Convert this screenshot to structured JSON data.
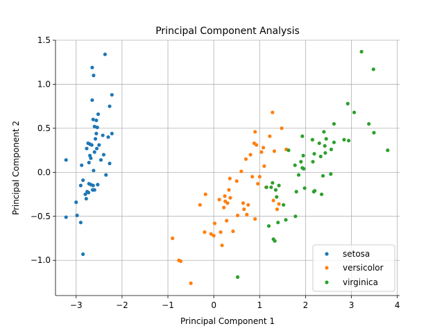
{
  "chart_data": {
    "type": "scatter",
    "title": "Principal Component Analysis",
    "xlabel": "Principal Component 1",
    "ylabel": "Principal Component 2",
    "xlim": [
      -3.45,
      4.05
    ],
    "ylim": [
      -1.4,
      1.5
    ],
    "xticks": [
      -3,
      -2,
      -1,
      0,
      1,
      2,
      3,
      4
    ],
    "xtick_labels": [
      "−3",
      "−2",
      "−1",
      "0",
      "1",
      "2",
      "3",
      "4"
    ],
    "yticks": [
      -1.0,
      -0.5,
      0.0,
      0.5,
      1.0,
      1.5
    ],
    "ytick_labels": [
      "−1.0",
      "−0.5",
      "0.0",
      "0.5",
      "1.0",
      "1.5"
    ],
    "grid": true,
    "legend_position": "lower-right",
    "series": [
      {
        "name": "setosa",
        "color": "#1f77b4",
        "points": [
          [
            -3.22,
            0.14
          ],
          [
            -3.22,
            -0.51
          ],
          [
            -3.0,
            -0.34
          ],
          [
            -2.98,
            -0.49
          ],
          [
            -2.9,
            -0.57
          ],
          [
            -2.88,
            0.08
          ],
          [
            -2.9,
            -0.15
          ],
          [
            -2.85,
            -0.09
          ],
          [
            -2.85,
            -0.93
          ],
          [
            -2.8,
            -0.25
          ],
          [
            -2.78,
            -0.3
          ],
          [
            -2.76,
            -0.22
          ],
          [
            -2.73,
            -0.23
          ],
          [
            -2.72,
            -0.13
          ],
          [
            -2.77,
            0.27
          ],
          [
            -2.74,
            0.33
          ],
          [
            -2.7,
            0.32
          ],
          [
            -2.72,
            0.11
          ],
          [
            -2.68,
            0.16
          ],
          [
            -2.66,
            0.31
          ],
          [
            -2.64,
            -0.2
          ],
          [
            -2.63,
            -0.15
          ],
          [
            -2.65,
            0.82
          ],
          [
            -2.65,
            1.19
          ],
          [
            -2.62,
            1.1
          ],
          [
            -2.63,
            0.6
          ],
          [
            -2.6,
            0.52
          ],
          [
            -2.6,
            0.23
          ],
          [
            -2.62,
            0.02
          ],
          [
            -2.58,
            0.38
          ],
          [
            -2.56,
            0.59
          ],
          [
            -2.56,
            0.44
          ],
          [
            -2.54,
            0.51
          ],
          [
            -2.52,
            0.66
          ],
          [
            -2.5,
            0.31
          ],
          [
            -2.53,
            -0.14
          ],
          [
            -2.46,
            0.14
          ],
          [
            -2.42,
            0.42
          ],
          [
            -2.4,
            0.2
          ],
          [
            -2.37,
            1.34
          ],
          [
            -2.35,
            -0.03
          ],
          [
            -2.3,
            0.4
          ],
          [
            -2.27,
            0.75
          ],
          [
            -2.27,
            0.1
          ],
          [
            -2.22,
            0.88
          ],
          [
            -2.22,
            0.44
          ],
          [
            -2.68,
            -0.14
          ],
          [
            -2.6,
            -0.2
          ],
          [
            -2.55,
            0.27
          ],
          [
            -2.7,
            0.19
          ]
        ]
      },
      {
        "name": "versicolor",
        "color": "#ff7f0e",
        "points": [
          [
            -0.9,
            -0.75
          ],
          [
            -0.76,
            -1.0
          ],
          [
            -0.72,
            -1.01
          ],
          [
            -0.5,
            -1.26
          ],
          [
            -0.3,
            -0.37
          ],
          [
            -0.2,
            -0.68
          ],
          [
            -0.18,
            -0.25
          ],
          [
            -0.06,
            -0.7
          ],
          [
            0.0,
            -0.72
          ],
          [
            0.02,
            -0.58
          ],
          [
            0.12,
            -0.31
          ],
          [
            0.15,
            -0.68
          ],
          [
            0.18,
            -0.83
          ],
          [
            0.22,
            -0.4
          ],
          [
            0.24,
            -0.27
          ],
          [
            0.25,
            -0.33
          ],
          [
            0.28,
            -0.55
          ],
          [
            0.3,
            -0.35
          ],
          [
            0.33,
            -0.2
          ],
          [
            0.35,
            -0.07
          ],
          [
            0.36,
            -0.29
          ],
          [
            0.42,
            -0.67
          ],
          [
            0.5,
            -0.1
          ],
          [
            0.52,
            -0.49
          ],
          [
            0.6,
            0.01
          ],
          [
            0.64,
            -0.35
          ],
          [
            0.66,
            -0.42
          ],
          [
            0.7,
            0.15
          ],
          [
            0.75,
            -0.37
          ],
          [
            0.8,
            0.2
          ],
          [
            0.84,
            -0.05
          ],
          [
            0.88,
            0.33
          ],
          [
            0.9,
            0.46
          ],
          [
            0.9,
            -0.53
          ],
          [
            0.93,
            0.31
          ],
          [
            0.96,
            -0.13
          ],
          [
            1.0,
            -0.05
          ],
          [
            1.04,
            0.23
          ],
          [
            1.08,
            0.28
          ],
          [
            1.1,
            0.07
          ],
          [
            1.14,
            -0.17
          ],
          [
            1.22,
            0.41
          ],
          [
            1.28,
            0.68
          ],
          [
            1.3,
            -0.32
          ],
          [
            1.32,
            0.24
          ],
          [
            1.38,
            -0.42
          ],
          [
            1.42,
            -0.36
          ],
          [
            1.48,
            0.5
          ],
          [
            1.58,
            0.26
          ],
          [
            0.72,
            -0.48
          ]
        ]
      },
      {
        "name": "virginica",
        "color": "#2ca02c",
        "points": [
          [
            0.52,
            -1.19
          ],
          [
            1.15,
            -0.17
          ],
          [
            1.2,
            -0.61
          ],
          [
            1.25,
            -0.17
          ],
          [
            1.28,
            -0.12
          ],
          [
            1.3,
            -0.76
          ],
          [
            1.33,
            -0.78
          ],
          [
            1.35,
            -0.2
          ],
          [
            1.37,
            -0.28
          ],
          [
            1.4,
            -0.57
          ],
          [
            1.42,
            -0.15
          ],
          [
            1.52,
            -0.37
          ],
          [
            1.57,
            -0.54
          ],
          [
            1.63,
            0.25
          ],
          [
            1.77,
            0.08
          ],
          [
            1.78,
            -0.5
          ],
          [
            1.8,
            -0.22
          ],
          [
            1.9,
            0.12
          ],
          [
            1.93,
            0.41
          ],
          [
            1.93,
            0.05
          ],
          [
            1.95,
            0.19
          ],
          [
            1.96,
            0.04
          ],
          [
            1.98,
            -0.18
          ],
          [
            2.15,
            0.37
          ],
          [
            2.16,
            0.12
          ],
          [
            2.18,
            -0.22
          ],
          [
            2.19,
            0.21
          ],
          [
            2.3,
            0.33
          ],
          [
            2.33,
            0.18
          ],
          [
            2.35,
            -0.25
          ],
          [
            2.38,
            -0.04
          ],
          [
            2.4,
            0.46
          ],
          [
            2.42,
            0.3
          ],
          [
            2.45,
            0.38
          ],
          [
            2.55,
            -0.02
          ],
          [
            2.56,
            0.26
          ],
          [
            2.62,
            0.55
          ],
          [
            2.62,
            0.34
          ],
          [
            2.84,
            0.37
          ],
          [
            2.92,
            0.78
          ],
          [
            2.94,
            0.36
          ],
          [
            3.06,
            0.68
          ],
          [
            3.22,
            1.37
          ],
          [
            3.38,
            0.55
          ],
          [
            3.48,
            1.17
          ],
          [
            3.49,
            0.45
          ],
          [
            3.79,
            0.25
          ],
          [
            2.2,
            -0.21
          ],
          [
            2.43,
            0.22
          ],
          [
            1.85,
            -0.03
          ]
        ]
      }
    ]
  }
}
